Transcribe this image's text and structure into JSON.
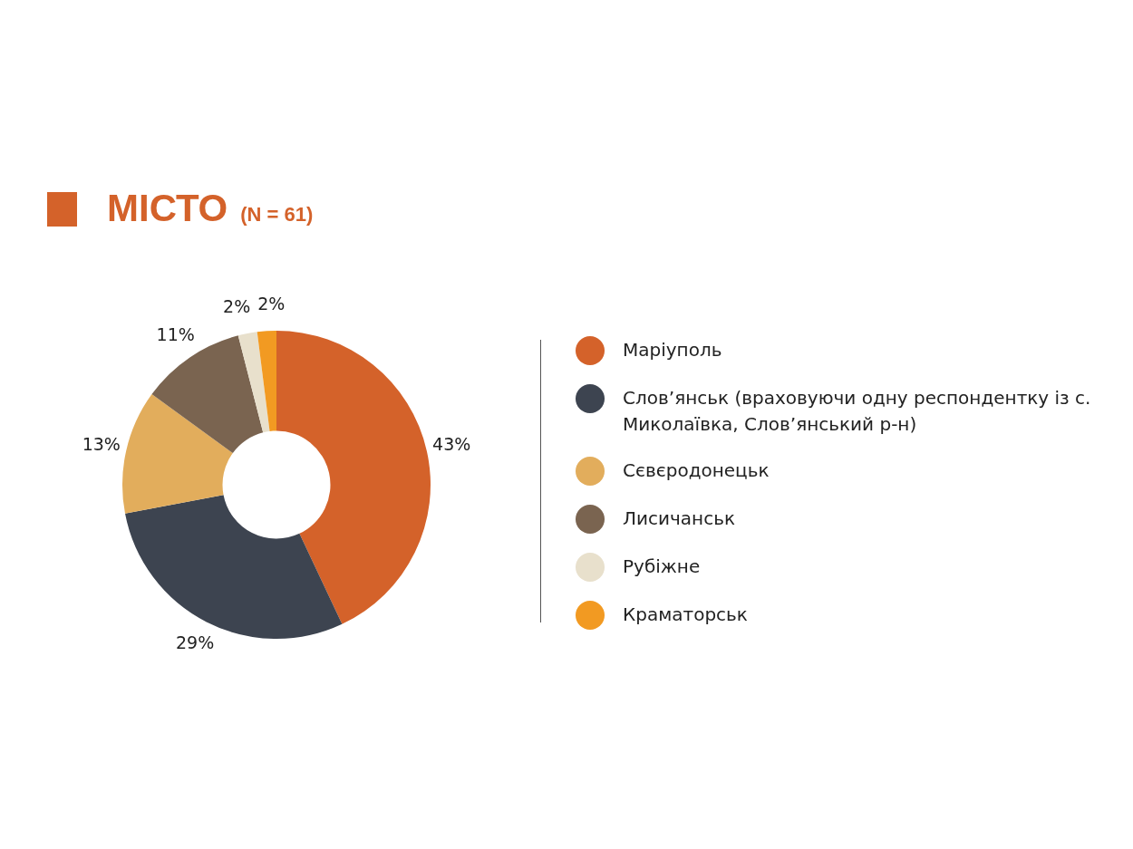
{
  "chart_data": {
    "type": "donut",
    "title": "МІСТО",
    "subtitle": "(N = 61)",
    "categories": [
      "Маріуполь",
      "Слов’янськ (враховуючи одну респондентку із с. Миколаївка, Слов’янський р-н)",
      "Сєвєродонецьк",
      "Лисичанськ",
      "Рубіжне",
      "Краматорськ"
    ],
    "values": [
      43,
      29,
      13,
      11,
      2,
      2
    ],
    "colors": [
      "#d4622a",
      "#3d4450",
      "#e2ad5c",
      "#7a6450",
      "#e8e0cc",
      "#f29a22"
    ],
    "value_labels": [
      "43%",
      "29%",
      "13%",
      "11%",
      "2%",
      "2%"
    ],
    "legend": "right"
  }
}
